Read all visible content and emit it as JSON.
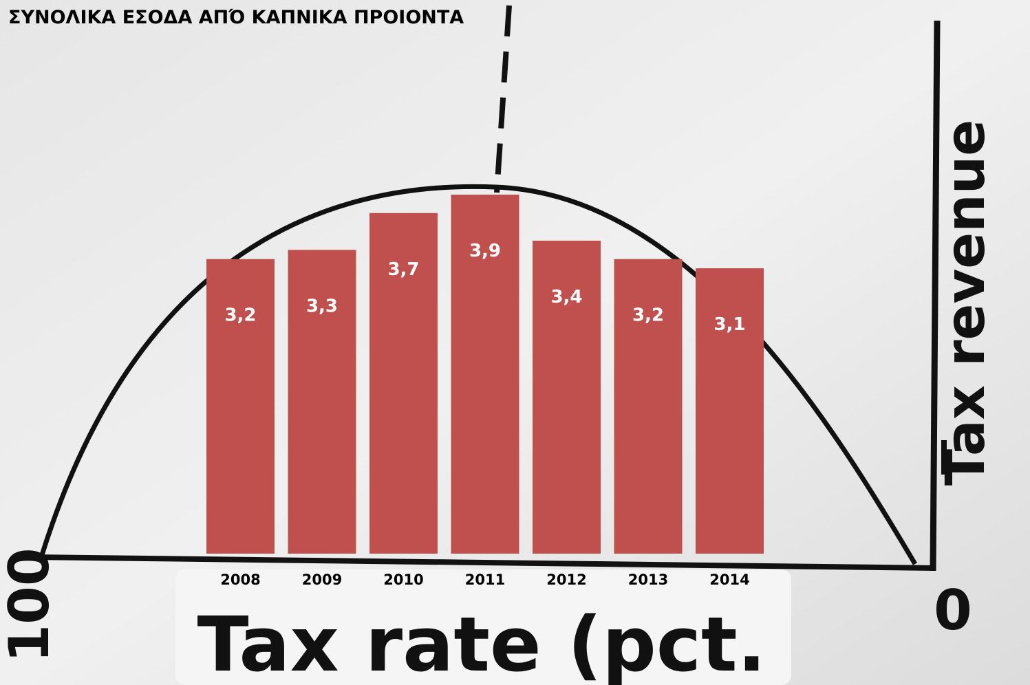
{
  "chart_data": {
    "type": "bar",
    "title": "ΣΥΝΟΛΙΚΑ ΕΣΟΔΑ ΑΠΌ ΚΑΠΝΙΚΑ ΠΡΟΙΟΝΤΑ",
    "categories": [
      "2008",
      "2009",
      "2010",
      "2011",
      "2012",
      "2013",
      "2014"
    ],
    "values": [
      3.2,
      3.3,
      3.7,
      3.9,
      3.4,
      3.2,
      3.1
    ],
    "value_labels": [
      "3,2",
      "3,3",
      "3,7",
      "3,9",
      "3,4",
      "3,2",
      "3,1"
    ],
    "color": "#c0504d",
    "annotations": [
      "Tax revenue",
      "Tax rate (pct.",
      "100",
      "0"
    ]
  }
}
